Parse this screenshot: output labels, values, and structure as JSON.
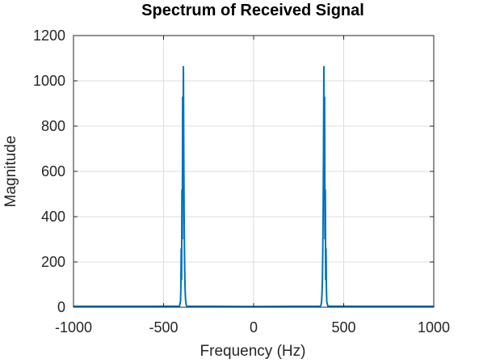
{
  "chart_data": {
    "type": "line",
    "title": "Spectrum of Received Signal",
    "xlabel": "Frequency (Hz)",
    "ylabel": "Magnitude",
    "xlim": [
      -1000,
      1000
    ],
    "ylim": [
      0,
      1200
    ],
    "xticks": [
      -1000,
      -500,
      0,
      500,
      1000
    ],
    "yticks": [
      0,
      200,
      400,
      600,
      800,
      1000,
      1200
    ],
    "grid": true,
    "colors": {
      "line": "#0072BD",
      "grid": "#dcdcdc",
      "axis": "#262626"
    },
    "series": [
      {
        "x": [
          -1000,
          -600,
          -412,
          -406,
          -404,
          -402,
          -400,
          -398,
          -396,
          -394,
          -392,
          -390,
          -388,
          -386,
          -384,
          -382,
          -380,
          -378,
          -376,
          -374,
          -372,
          -370,
          -368,
          -366,
          -200,
          0,
          200,
          366,
          368,
          370,
          372,
          374,
          376,
          378,
          380,
          382,
          384,
          386,
          388,
          390,
          392,
          394,
          396,
          398,
          400,
          402,
          404,
          406,
          412,
          600,
          1000
        ],
        "y": [
          4,
          4,
          5,
          25,
          80,
          260,
          120,
          520,
          300,
          930,
          560,
          1065,
          700,
          420,
          250,
          130,
          70,
          35,
          18,
          10,
          6,
          5,
          4,
          4,
          4,
          3,
          4,
          4,
          4,
          5,
          6,
          10,
          18,
          35,
          70,
          130,
          250,
          420,
          700,
          1065,
          560,
          930,
          300,
          520,
          120,
          260,
          80,
          25,
          5,
          4,
          4
        ]
      }
    ]
  }
}
